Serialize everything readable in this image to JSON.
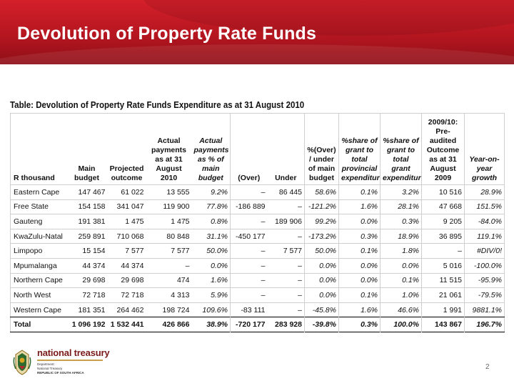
{
  "slide": {
    "title": "Devolution of Property Rate Funds",
    "page_number": "2",
    "brand_color": "#c0141c"
  },
  "table": {
    "title": "Table: Devolution of Property Rate Funds Expenditure as at 31 August 2010",
    "headers": [
      "R thousand",
      "Main budget",
      "Projected outcome",
      "Actual payments as at 31 August 2010",
      "Actual payments as % of main budget",
      "(Over)",
      "Under",
      "%(Over) / under of main budget",
      "%share of grant to total provincial expenditure",
      "%share of grant to total grant expenditure",
      "2009/10: Pre-audited Outcome as at 31 August 2009",
      "Year-on-year growth"
    ],
    "rows": [
      [
        "Eastern Cape",
        "147 467",
        "61 022",
        "13 555",
        "9.2%",
        "–",
        "86 445",
        "58.6%",
        "0.1%",
        "3.2%",
        "10 516",
        "28.9%"
      ],
      [
        "Free State",
        "154 158",
        "341 047",
        "119 900",
        "77.8%",
        "-186 889",
        "–",
        "-121.2%",
        "1.6%",
        "28.1%",
        "47 668",
        "151.5%"
      ],
      [
        "Gauteng",
        "191 381",
        "1 475",
        "1 475",
        "0.8%",
        "–",
        "189 906",
        "99.2%",
        "0.0%",
        "0.3%",
        "9 205",
        "-84.0%"
      ],
      [
        "KwaZulu-Natal",
        "259 891",
        "710 068",
        "80 848",
        "31.1%",
        "-450 177",
        "–",
        "-173.2%",
        "0.3%",
        "18.9%",
        "36 895",
        "119.1%"
      ],
      [
        "Limpopo",
        "15 154",
        "7 577",
        "7 577",
        "50.0%",
        "–",
        "7 577",
        "50.0%",
        "0.1%",
        "1.8%",
        "–",
        "#DIV/0!"
      ],
      [
        "Mpumalanga",
        "44 374",
        "44 374",
        "–",
        "0.0%",
        "–",
        "–",
        "0.0%",
        "0.0%",
        "0.0%",
        "5 016",
        "-100.0%"
      ],
      [
        "Northern Cape",
        "29 698",
        "29 698",
        "474",
        "1.6%",
        "–",
        "–",
        "0.0%",
        "0.0%",
        "0.1%",
        "11 515",
        "-95.9%"
      ],
      [
        "North West",
        "72 718",
        "72 718",
        "4 313",
        "5.9%",
        "–",
        "–",
        "0.0%",
        "0.1%",
        "1.0%",
        "21 061",
        "-79.5%"
      ],
      [
        "Western Cape",
        "181 351",
        "264 462",
        "198 724",
        "109.6%",
        "-83 111",
        "–",
        "-45.8%",
        "1.6%",
        "46.6%",
        "1 991",
        "9881.1%"
      ]
    ],
    "total": [
      "Total",
      "1 096 192",
      "1 532 441",
      "426 866",
      "38.9%",
      "-720 177",
      "283 928",
      "-39.8%",
      "0.3%",
      "100.0%",
      "143 867",
      "196.7%"
    ]
  },
  "footer": {
    "brand": "national treasury",
    "sub1": "Department:",
    "sub2": "National Treasury",
    "sub3": "REPUBLIC OF SOUTH AFRICA",
    "brand_color": "#7a1a1a",
    "logo_icon": "coat-of-arms-icon"
  }
}
